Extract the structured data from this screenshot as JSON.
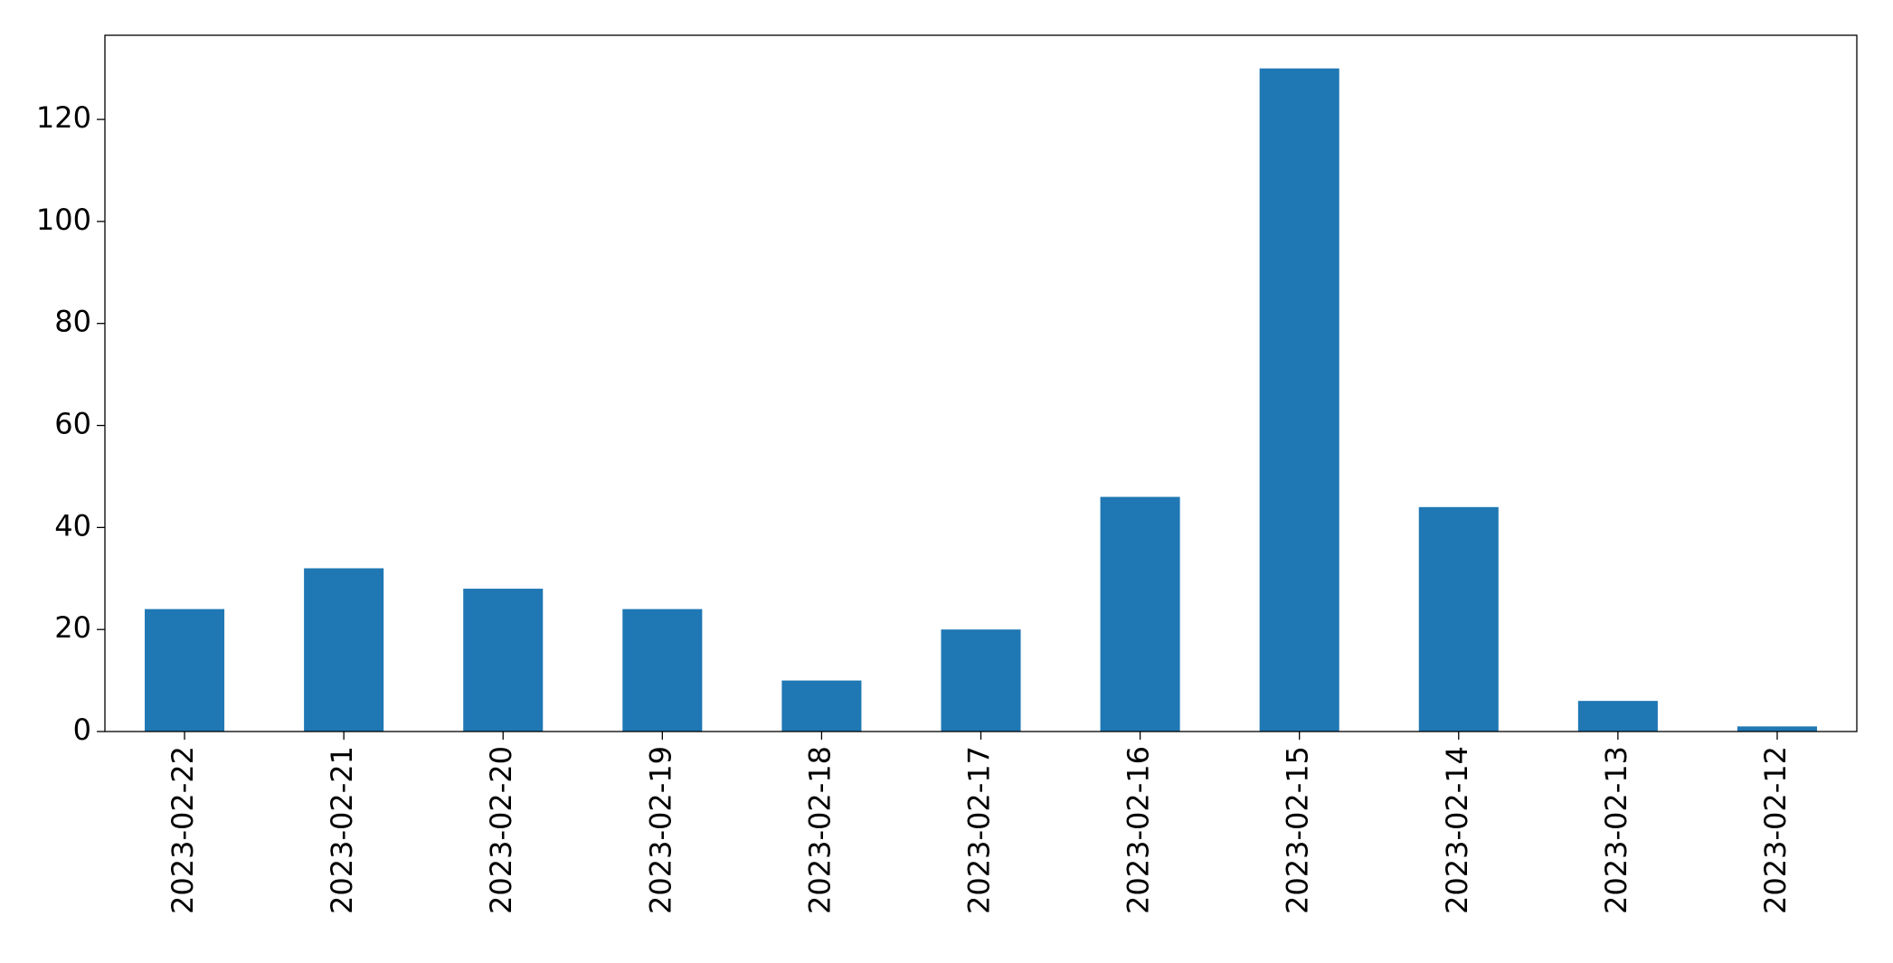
{
  "chart_data": {
    "type": "bar",
    "categories": [
      "2023-02-22",
      "2023-02-21",
      "2023-02-20",
      "2023-02-19",
      "2023-02-18",
      "2023-02-17",
      "2023-02-16",
      "2023-02-15",
      "2023-02-14",
      "2023-02-13",
      "2023-02-12"
    ],
    "values": [
      24,
      32,
      28,
      24,
      10,
      20,
      46,
      130,
      44,
      6,
      1
    ],
    "color": "#1f77b4",
    "ylim": [
      0,
      136.5
    ],
    "yticks": [
      0,
      20,
      40,
      60,
      80,
      100,
      120
    ],
    "grid": false
  }
}
